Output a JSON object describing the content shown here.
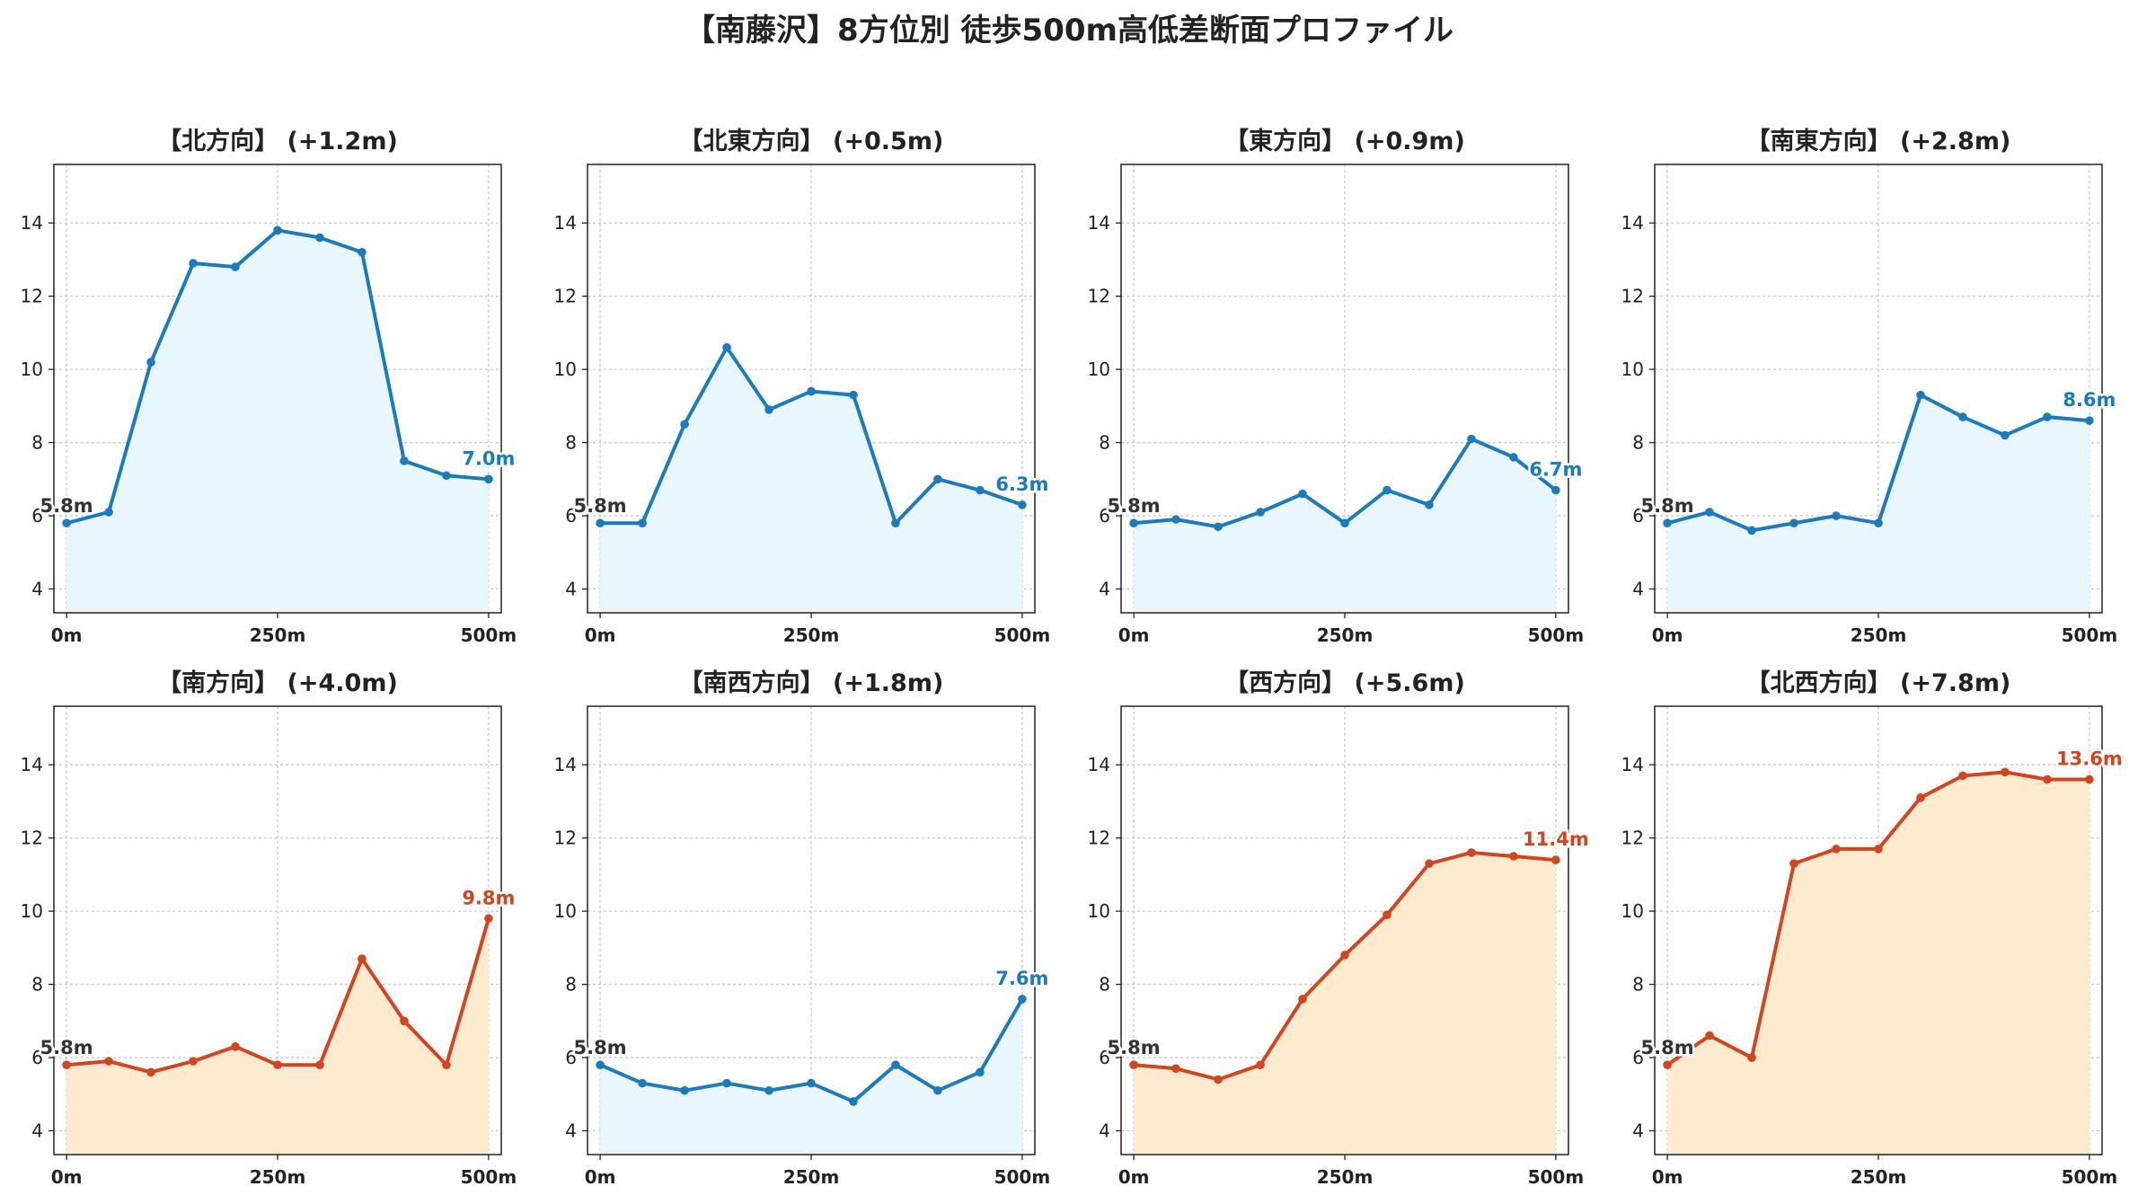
{
  "title": "【南藤沢】8方位別 徒歩500m高低差断面プロファイル",
  "colors": {
    "up": "#1a7bbf",
    "up_fill": "#e9f6fb",
    "down": "#d5441c",
    "down_fill": "#fdebd0",
    "start_label": "#333333"
  },
  "chart_data": [
    {
      "type": "area",
      "title": "【北方向】 (+1.2m)",
      "trend": "up",
      "x": [
        0,
        50,
        100,
        150,
        200,
        250,
        300,
        350,
        400,
        450,
        500
      ],
      "y": [
        5.8,
        6.1,
        10.2,
        12.9,
        12.8,
        13.8,
        13.6,
        13.2,
        7.5,
        7.1,
        7.0
      ],
      "start_label": "5.8m",
      "end_label": "7.0m",
      "xticks": [
        "0m",
        "250m",
        "500m"
      ],
      "yticks": [
        "4",
        "6",
        "8",
        "10",
        "12",
        "14"
      ],
      "xlim": [
        -15,
        515
      ],
      "ylim": [
        3.35,
        15.6
      ],
      "grid": true
    },
    {
      "type": "area",
      "title": "【北東方向】 (+0.5m)",
      "trend": "up",
      "x": [
        0,
        50,
        100,
        150,
        200,
        250,
        300,
        350,
        400,
        450,
        500
      ],
      "y": [
        5.8,
        5.8,
        8.5,
        10.6,
        8.9,
        9.4,
        9.3,
        5.8,
        7.0,
        6.7,
        6.3
      ],
      "start_label": "5.8m",
      "end_label": "6.3m",
      "xticks": [
        "0m",
        "250m",
        "500m"
      ],
      "yticks": [
        "4",
        "6",
        "8",
        "10",
        "12",
        "14"
      ],
      "xlim": [
        -15,
        515
      ],
      "ylim": [
        3.35,
        15.6
      ],
      "grid": true
    },
    {
      "type": "area",
      "title": "【東方向】 (+0.9m)",
      "trend": "up",
      "x": [
        0,
        50,
        100,
        150,
        200,
        250,
        300,
        350,
        400,
        450,
        500
      ],
      "y": [
        5.8,
        5.9,
        5.7,
        6.1,
        6.6,
        5.8,
        6.7,
        6.3,
        8.1,
        7.6,
        6.7
      ],
      "start_label": "5.8m",
      "end_label": "6.7m",
      "xticks": [
        "0m",
        "250m",
        "500m"
      ],
      "yticks": [
        "4",
        "6",
        "8",
        "10",
        "12",
        "14"
      ],
      "xlim": [
        -15,
        515
      ],
      "ylim": [
        3.35,
        15.6
      ],
      "grid": true
    },
    {
      "type": "area",
      "title": "【南東方向】 (+2.8m)",
      "trend": "up",
      "x": [
        0,
        50,
        100,
        150,
        200,
        250,
        300,
        350,
        400,
        450,
        500
      ],
      "y": [
        5.8,
        6.1,
        5.6,
        5.8,
        6.0,
        5.8,
        9.3,
        8.7,
        8.2,
        8.7,
        8.6
      ],
      "start_label": "5.8m",
      "end_label": "8.6m",
      "xticks": [
        "0m",
        "250m",
        "500m"
      ],
      "yticks": [
        "4",
        "6",
        "8",
        "10",
        "12",
        "14"
      ],
      "xlim": [
        -15,
        515
      ],
      "ylim": [
        3.35,
        15.6
      ],
      "grid": true
    },
    {
      "type": "area",
      "title": "【南方向】 (+4.0m)",
      "trend": "down",
      "x": [
        0,
        50,
        100,
        150,
        200,
        250,
        300,
        350,
        400,
        450,
        500
      ],
      "y": [
        5.8,
        5.9,
        5.6,
        5.9,
        6.3,
        5.8,
        5.8,
        8.7,
        7.0,
        5.8,
        9.8
      ],
      "start_label": "5.8m",
      "end_label": "9.8m",
      "xticks": [
        "0m",
        "250m",
        "500m"
      ],
      "yticks": [
        "4",
        "6",
        "8",
        "10",
        "12",
        "14"
      ],
      "xlim": [
        -15,
        515
      ],
      "ylim": [
        3.35,
        15.6
      ],
      "grid": true
    },
    {
      "type": "area",
      "title": "【南西方向】 (+1.8m)",
      "trend": "up",
      "x": [
        0,
        50,
        100,
        150,
        200,
        250,
        300,
        350,
        400,
        450,
        500
      ],
      "y": [
        5.8,
        5.3,
        5.1,
        5.3,
        5.1,
        5.3,
        4.8,
        5.8,
        5.1,
        5.6,
        7.6
      ],
      "start_label": "5.8m",
      "end_label": "7.6m",
      "xticks": [
        "0m",
        "250m",
        "500m"
      ],
      "yticks": [
        "4",
        "6",
        "8",
        "10",
        "12",
        "14"
      ],
      "xlim": [
        -15,
        515
      ],
      "ylim": [
        3.35,
        15.6
      ],
      "grid": true
    },
    {
      "type": "area",
      "title": "【西方向】 (+5.6m)",
      "trend": "down",
      "x": [
        0,
        50,
        100,
        150,
        200,
        250,
        300,
        350,
        400,
        450,
        500
      ],
      "y": [
        5.8,
        5.7,
        5.4,
        5.8,
        7.6,
        8.8,
        9.9,
        11.3,
        11.6,
        11.5,
        11.4
      ],
      "start_label": "5.8m",
      "end_label": "11.4m",
      "xticks": [
        "0m",
        "250m",
        "500m"
      ],
      "yticks": [
        "4",
        "6",
        "8",
        "10",
        "12",
        "14"
      ],
      "xlim": [
        -15,
        515
      ],
      "ylim": [
        3.35,
        15.6
      ],
      "grid": true
    },
    {
      "type": "area",
      "title": "【北西方向】 (+7.8m)",
      "trend": "down",
      "x": [
        0,
        50,
        100,
        150,
        200,
        250,
        300,
        350,
        400,
        450,
        500
      ],
      "y": [
        5.8,
        6.6,
        6.0,
        11.3,
        11.7,
        11.7,
        13.1,
        13.7,
        13.8,
        13.6,
        13.6
      ],
      "start_label": "5.8m",
      "end_label": "13.6m",
      "xticks": [
        "0m",
        "250m",
        "500m"
      ],
      "yticks": [
        "4",
        "6",
        "8",
        "10",
        "12",
        "14"
      ],
      "xlim": [
        -15,
        515
      ],
      "ylim": [
        3.35,
        15.6
      ],
      "grid": true
    }
  ]
}
